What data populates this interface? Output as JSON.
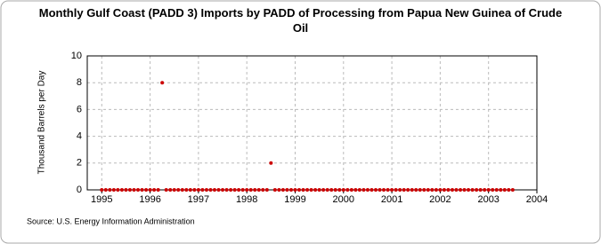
{
  "chart_data": {
    "type": "scatter",
    "title": "Monthly Gulf Coast (PADD 3) Imports by PADD of Processing from Papua New Guinea of Crude Oil",
    "y_label": "Thousand Barrels per Day",
    "source": "Source: U.S. Energy Information Administration",
    "color": "#cc0000",
    "grid": true,
    "xlim": [
      1994.7,
      2004
    ],
    "xticks": [
      1995,
      1996,
      1997,
      1998,
      1999,
      2000,
      2001,
      2002,
      2003,
      2004
    ],
    "ylim": [
      0,
      10
    ],
    "yticks": [
      0,
      2,
      4,
      6,
      8,
      10
    ],
    "x": [
      1995,
      1995.083,
      1995.167,
      1995.25,
      1995.333,
      1995.417,
      1995.5,
      1995.583,
      1995.667,
      1995.75,
      1995.833,
      1995.917,
      1996,
      1996.083,
      1996.167,
      1996.25,
      1996.333,
      1996.417,
      1996.5,
      1996.583,
      1996.667,
      1996.75,
      1996.833,
      1996.917,
      1997,
      1997.083,
      1997.167,
      1997.25,
      1997.333,
      1997.417,
      1997.5,
      1997.583,
      1997.667,
      1997.75,
      1997.833,
      1997.917,
      1998,
      1998.083,
      1998.167,
      1998.25,
      1998.333,
      1998.417,
      1998.5,
      1998.583,
      1998.667,
      1998.75,
      1998.833,
      1998.917,
      1999,
      1999.083,
      1999.167,
      1999.25,
      1999.333,
      1999.417,
      1999.5,
      1999.583,
      1999.667,
      1999.75,
      1999.833,
      1999.917,
      2000,
      2000.083,
      2000.167,
      2000.25,
      2000.333,
      2000.417,
      2000.5,
      2000.583,
      2000.667,
      2000.75,
      2000.833,
      2000.917,
      2001,
      2001.083,
      2001.167,
      2001.25,
      2001.333,
      2001.417,
      2001.5,
      2001.583,
      2001.667,
      2001.75,
      2001.833,
      2001.917,
      2002,
      2002.083,
      2002.167,
      2002.25,
      2002.333,
      2002.417,
      2002.5,
      2002.583,
      2002.667,
      2002.75,
      2002.833,
      2002.917,
      2003,
      2003.083,
      2003.167,
      2003.25,
      2003.333,
      2003.417,
      2003.5
    ],
    "values": [
      0,
      0,
      0,
      0,
      0,
      0,
      0,
      0,
      0,
      0,
      0,
      0,
      0,
      0,
      0,
      8,
      0,
      0,
      0,
      0,
      0,
      0,
      0,
      0,
      0,
      0,
      0,
      0,
      0,
      0,
      0,
      0,
      0,
      0,
      0,
      0,
      0,
      0,
      0,
      0,
      0,
      0,
      2,
      0,
      0,
      0,
      0,
      0,
      0,
      0,
      0,
      0,
      0,
      0,
      0,
      0,
      0,
      0,
      0,
      0,
      0,
      0,
      0,
      0,
      0,
      0,
      0,
      0,
      0,
      0,
      0,
      0,
      0,
      0,
      0,
      0,
      0,
      0,
      0,
      0,
      0,
      0,
      0,
      0,
      0,
      0,
      0,
      0,
      0,
      0,
      0,
      0,
      0,
      0,
      0,
      0,
      0,
      0,
      0,
      0,
      0,
      0,
      0
    ]
  }
}
